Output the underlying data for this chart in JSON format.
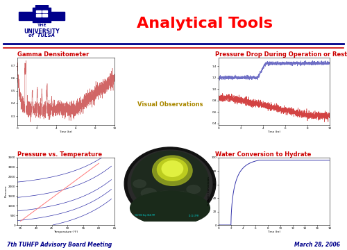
{
  "title": "Analytical Tools",
  "title_color": "#FF0000",
  "title_fontsize": 16,
  "background_color": "#FFFFFF",
  "subtitle_gamma": "Gamma Densitometer",
  "subtitle_pressure_drop": "Pressure Drop During Operation or Restart",
  "subtitle_pvt": "Pressure vs. Temperature",
  "subtitle_visual": "Visual Observations",
  "subtitle_water": "Water Conversion to Hydrate",
  "subtitle_color": "#CC0000",
  "subtitle_fontsize": 6,
  "footer_left": "7th TUHFP Advisory Board Meeting",
  "footer_right": "March 28, 2006",
  "footer_color": "#00008B",
  "footer_fontsize": 5.5,
  "univ_color": "#00008B",
  "line1_color": "#00008B",
  "line2_color": "#CC0000"
}
